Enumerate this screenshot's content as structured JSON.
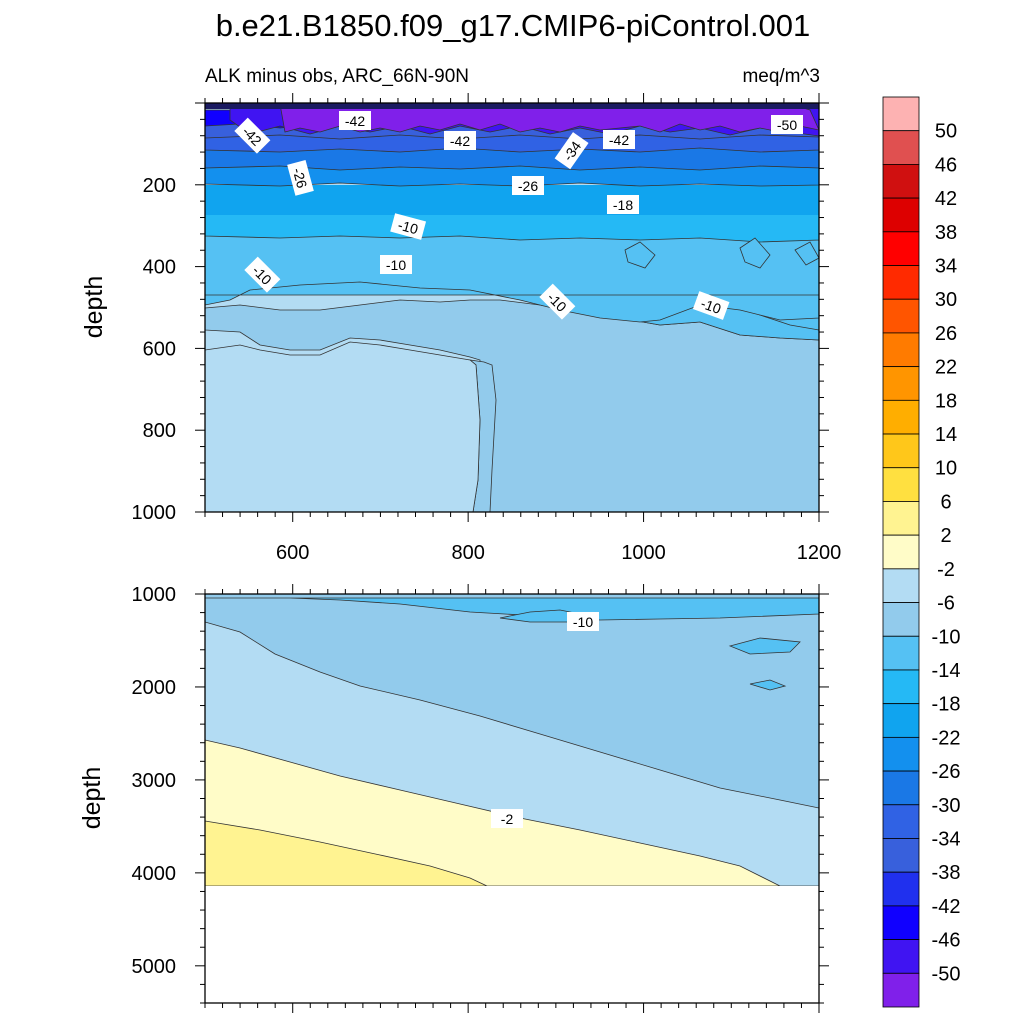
{
  "title": "b.e21.B1850.f09_g17.CMIP6-piControl.001",
  "subtitle_left": "ALK minus obs, ARC_66N-90N",
  "subtitle_right": "meq/m^3",
  "chart_data": [
    {
      "type": "contour",
      "panel": "upper",
      "xlabel": "",
      "ylabel": "depth",
      "x_range": [
        500,
        1200
      ],
      "y_range": [
        0,
        1000
      ],
      "y_reversed": true,
      "x_ticks": [
        "600",
        "800",
        "1000",
        "1200"
      ],
      "y_ticks": [
        "200",
        "400",
        "600",
        "800",
        "1000"
      ],
      "bands": [
        {
          "range": "-50 and below",
          "depth_top": 0,
          "depth_bottom": 70
        },
        {
          "range": "-46 to -42",
          "depth_top": 70,
          "depth_bottom": 100
        },
        {
          "range": "-42 to -34",
          "depth_top": 100,
          "depth_bottom": 140
        },
        {
          "range": "-34 to -26",
          "depth_top": 140,
          "depth_bottom": 185
        },
        {
          "range": "-26 to -18",
          "depth_top": 185,
          "depth_bottom": 235
        },
        {
          "range": "-18 to -14",
          "depth_top": 235,
          "depth_bottom": 265
        },
        {
          "range": "-14 to -10",
          "depth_top": 265,
          "depth_bottom": 450
        },
        {
          "range": "-10 to -6",
          "depth_top": 450,
          "depth_bottom": 600
        },
        {
          "range": "-6 to -2",
          "depth_top": 600,
          "depth_bottom": 1000
        }
      ],
      "contour_labels": [
        "-42",
        "-42",
        "-42",
        "-34",
        "-42",
        "-50",
        "-26",
        "-26",
        "-18",
        "-10",
        "-10",
        "-10",
        "-10",
        "-10"
      ]
    },
    {
      "type": "contour",
      "panel": "lower",
      "xlabel": "",
      "ylabel": "depth",
      "x_range": [
        500,
        1200
      ],
      "y_range": [
        1000,
        5400
      ],
      "y_reversed": true,
      "y_ticks": [
        "1000",
        "2000",
        "3000",
        "4000",
        "5000"
      ],
      "ocean_floor_depth": 4120,
      "bands": [
        {
          "range": "-14 to -10",
          "depth_top": 1000,
          "depth_bottom": 1200
        },
        {
          "range": "-10 to -6",
          "depth_top": 1200,
          "depth_bottom": 2900
        },
        {
          "range": "-6 to -2",
          "depth_top": 2000,
          "depth_bottom": 4120
        },
        {
          "range": "-2 to 2",
          "depth_top": 2560,
          "depth_bottom": 4120
        },
        {
          "range": "2 to 6",
          "depth_top": 3440,
          "depth_bottom": 4120
        }
      ],
      "contour_labels": [
        "-10",
        "-2"
      ]
    }
  ],
  "colorbar": {
    "labels": [
      "50",
      "46",
      "42",
      "38",
      "34",
      "30",
      "26",
      "22",
      "18",
      "14",
      "10",
      "6",
      "2",
      "-2",
      "-6",
      "-10",
      "-14",
      "-18",
      "-22",
      "-26",
      "-30",
      "-34",
      "-38",
      "-42",
      "-46",
      "-50"
    ],
    "colors": [
      "#fdb2b2",
      "#e05050",
      "#d01010",
      "#dd0000",
      "#ff0000",
      "#ff2a00",
      "#ff5500",
      "#ff7b00",
      "#ff9500",
      "#ffae00",
      "#ffc71a",
      "#ffe040",
      "#fff391",
      "#fffcc8",
      "#b3dcf3",
      "#92cbec",
      "#55c1f3",
      "#25b9f5",
      "#10a4ef",
      "#1390ee",
      "#1a78e6",
      "#3062e4",
      "#3860dc",
      "#2030ee",
      "#1000ff",
      "#4014f2",
      "#8020ea"
    ]
  }
}
